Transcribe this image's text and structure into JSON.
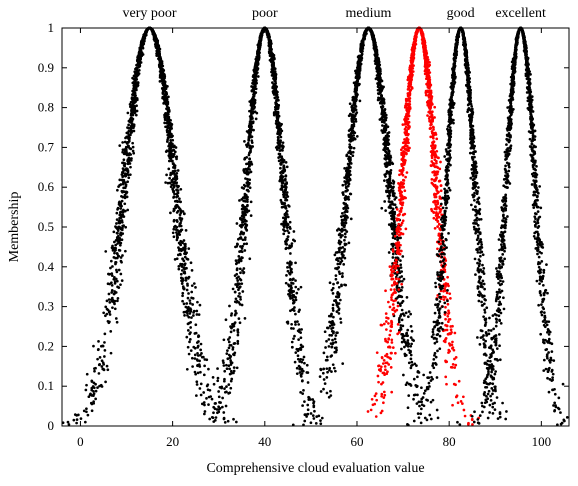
{
  "chart_data": {
    "type": "scatter",
    "xlabel": "Comprehensive cloud evaluation value",
    "ylabel": "Membership",
    "xlim": [
      -4,
      106
    ],
    "ylim": [
      0,
      1
    ],
    "xticks": [
      0,
      20,
      40,
      60,
      80,
      100
    ],
    "yticks": [
      0,
      0.1,
      0.2,
      0.3,
      0.4,
      0.5,
      0.6,
      0.7,
      0.8,
      0.9,
      1
    ],
    "ytick_labels": [
      "0",
      "0.1",
      "0.2",
      "0.3",
      "0.4",
      "0.5",
      "0.6",
      "0.7",
      "0.8",
      "0.9",
      "1"
    ],
    "grid": false,
    "clouds": [
      {
        "label": "very poor",
        "Ex": 15,
        "En": 5.5,
        "He": 0.55,
        "color": "#000000",
        "drops": 1800
      },
      {
        "label": "poor",
        "Ex": 40,
        "En": 4.0,
        "He": 0.45,
        "color": "#000000",
        "drops": 1500
      },
      {
        "label": "medium",
        "Ex": 62.5,
        "En": 4.6,
        "He": 0.5,
        "color": "#000000",
        "drops": 1600
      },
      {
        "label": "",
        "Ex": 73.5,
        "En": 3.7,
        "He": 0.45,
        "color": "#ff0000",
        "drops": 1500
      },
      {
        "label": "good",
        "Ex": 82.5,
        "En": 3.1,
        "He": 0.35,
        "color": "#000000",
        "drops": 1400
      },
      {
        "label": "excellent",
        "Ex": 95.5,
        "En": 3.2,
        "He": 0.35,
        "color": "#000000",
        "drops": 1400
      }
    ]
  }
}
